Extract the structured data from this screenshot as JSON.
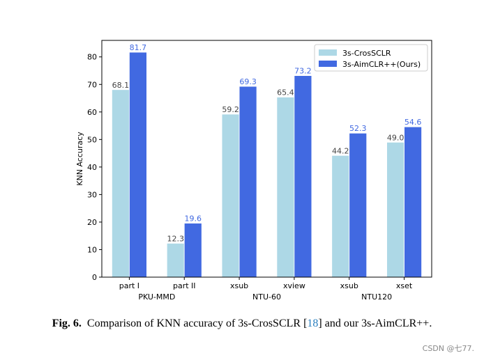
{
  "chart_data": {
    "type": "bar",
    "ylabel": "KNN Accuracy",
    "xlabel": "",
    "ylim": [
      0,
      86
    ],
    "yticks": [
      0,
      10,
      20,
      30,
      40,
      50,
      60,
      70,
      80
    ],
    "categories": [
      "part I",
      "part II",
      "xsub",
      "xview",
      "xsub",
      "xset"
    ],
    "groups": [
      {
        "label": "PKU-MMD",
        "span": [
          0,
          1
        ]
      },
      {
        "label": "NTU-60",
        "span": [
          2,
          3
        ]
      },
      {
        "label": "NTU120",
        "span": [
          4,
          5
        ]
      }
    ],
    "series": [
      {
        "name": "3s-CrosSCLR",
        "color": "#add8e6",
        "label_color": "#444444",
        "values": [
          68.1,
          12.3,
          59.2,
          65.4,
          44.2,
          49.0
        ],
        "labels": [
          "68.1",
          "12.3",
          "59.2",
          "65.4",
          "44.2",
          "49.0"
        ]
      },
      {
        "name": "3s-AimCLR++(Ours)",
        "color": "#4169e1",
        "label_color": "#4169e1",
        "values": [
          81.7,
          19.6,
          69.3,
          73.2,
          52.3,
          54.6
        ],
        "labels": [
          "81.7",
          "19.6",
          "69.3",
          "73.2",
          "52.3",
          "54.6"
        ]
      }
    ],
    "legend_position": "top-right"
  },
  "caption": {
    "fig_label": "Fig. 6.",
    "text_before": "Comparison of KNN accuracy of 3s-CrosSCLR [",
    "ref": "18",
    "text_after": "] and our 3s-AimCLR++."
  },
  "watermark": "CSDN @七77."
}
